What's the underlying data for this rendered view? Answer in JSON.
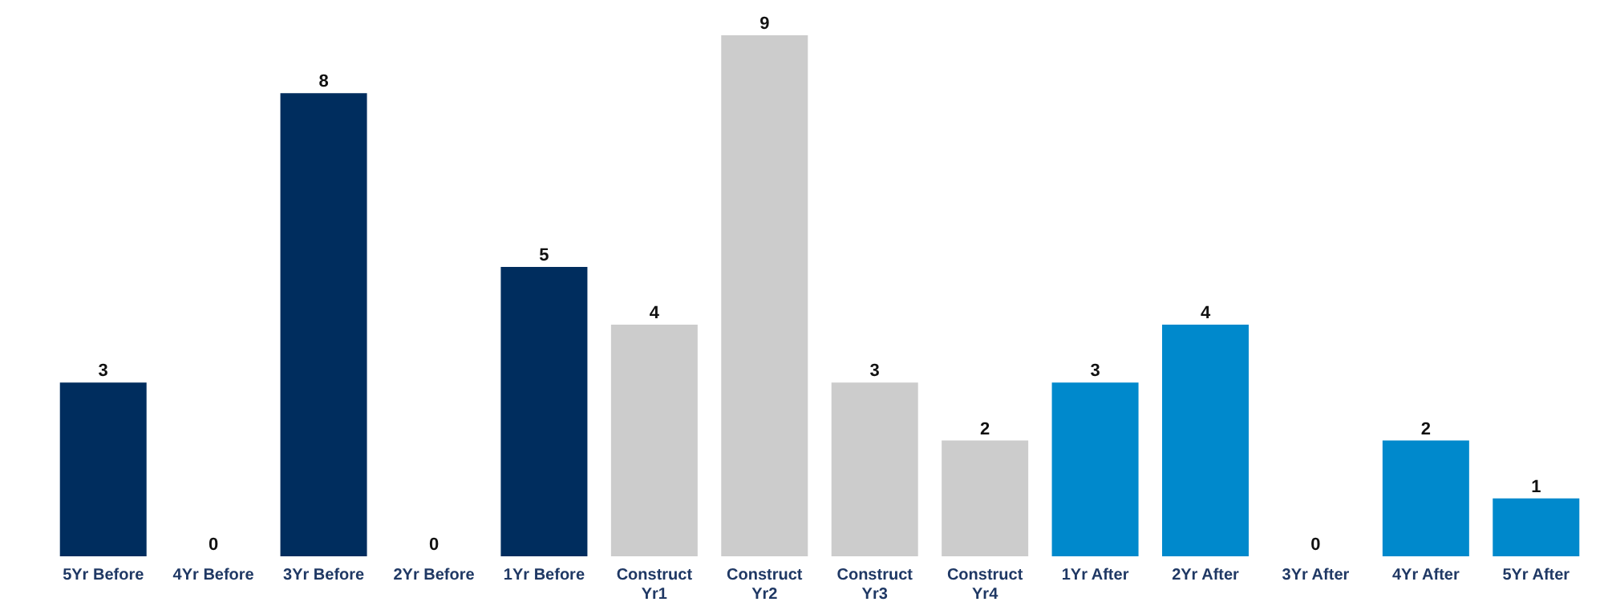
{
  "chart_data": {
    "type": "bar",
    "categories": [
      "5Yr Before",
      "4Yr Before",
      "3Yr Before",
      "2Yr Before",
      "1Yr Before",
      "Construct Yr1",
      "Construct Yr2",
      "Construct Yr3",
      "Construct Yr4",
      "1Yr After",
      "2Yr After",
      "3Yr After",
      "4Yr After",
      "5Yr After"
    ],
    "values": [
      3,
      0,
      8,
      0,
      5,
      4,
      9,
      3,
      2,
      3,
      4,
      0,
      2,
      1
    ],
    "colors": [
      "#002d5e",
      "#002d5e",
      "#002d5e",
      "#002d5e",
      "#002d5e",
      "#cccccc",
      "#cccccc",
      "#cccccc",
      "#cccccc",
      "#0089cc",
      "#0089cc",
      "#0089cc",
      "#0089cc",
      "#0089cc"
    ],
    "data_labels": true
  }
}
